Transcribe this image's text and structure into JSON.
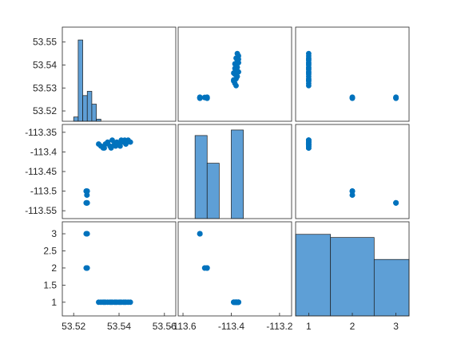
{
  "chart_data": {
    "type": "scatter-matrix",
    "title": "",
    "variables": [
      {
        "ticks": [
          53.52,
          53.53,
          53.54,
          53.55
        ],
        "tick_labels": [
          "53.52",
          "53.53",
          "53.54",
          "53.55"
        ]
      },
      {
        "ticks": [
          -113.35,
          -113.4,
          -113.45,
          -113.5,
          -113.55
        ],
        "tick_labels": [
          "-113.35",
          "-113.4",
          "-113.45",
          "-113.5",
          "-113.55"
        ]
      },
      {
        "ticks": [
          1,
          1.5,
          2,
          2.5,
          3
        ],
        "tick_labels": [
          "1",
          "1.5",
          "2",
          "2.5",
          "3"
        ]
      }
    ],
    "x_axes": [
      {
        "range": [
          53.515,
          53.565
        ],
        "ticks": [
          53.52,
          53.54,
          53.56
        ],
        "tick_labels": [
          "53.52",
          "53.54",
          "53.56"
        ]
      },
      {
        "range": [
          -113.62,
          -113.15
        ],
        "ticks": [
          -113.6,
          -113.4,
          -113.2
        ],
        "tick_labels": [
          "-113.6",
          "-113.4",
          "-113.2"
        ]
      },
      {
        "range": [
          0.7,
          3.3
        ],
        "ticks": [
          1,
          2,
          3
        ],
        "tick_labels": [
          "1",
          "2",
          "3"
        ]
      }
    ],
    "y_axes": [
      {
        "range": [
          53.5155,
          53.5565
        ]
      },
      {
        "range": [
          -113.57,
          -113.33
        ]
      },
      {
        "range": [
          0.6,
          3.35
        ]
      }
    ],
    "histograms": {
      "var1": {
        "edges": [
          53.52,
          53.522,
          53.524,
          53.526,
          53.528,
          53.53,
          53.532
        ],
        "counts": [
          1,
          19,
          6,
          7,
          4,
          0.5
        ],
        "ymax": 22
      },
      "var2": {
        "edges": [
          -113.55,
          -113.5,
          -113.45,
          -113.4,
          -113.35
        ],
        "counts": [
          15,
          10,
          0,
          16
        ],
        "ymax": 17
      },
      "var3": {
        "edges": [
          0.5,
          1.5,
          2.5,
          3.5
        ],
        "counts": [
          13,
          12.5,
          9
        ],
        "ymax": 15
      }
    },
    "points": [
      [
        53.5255,
        -113.5,
        2
      ],
      [
        53.5256,
        -113.5,
        2
      ],
      [
        53.5257,
        -113.5,
        2
      ],
      [
        53.5258,
        -113.51,
        2
      ],
      [
        53.5259,
        -113.51,
        2
      ],
      [
        53.526,
        -113.5,
        2
      ],
      [
        53.5255,
        -113.53,
        3
      ],
      [
        53.5256,
        -113.53,
        3
      ],
      [
        53.5257,
        -113.53,
        3
      ],
      [
        53.5258,
        -113.53,
        3
      ],
      [
        53.5259,
        -113.53,
        3
      ],
      [
        53.526,
        -113.53,
        3
      ],
      [
        53.531,
        -113.38,
        1
      ],
      [
        53.532,
        -113.385,
        1
      ],
      [
        53.533,
        -113.39,
        1
      ],
      [
        53.534,
        -113.38,
        1
      ],
      [
        53.535,
        -113.375,
        1
      ],
      [
        53.536,
        -113.385,
        1
      ],
      [
        53.537,
        -113.37,
        1
      ],
      [
        53.538,
        -113.38,
        1
      ],
      [
        53.539,
        -113.375,
        1
      ],
      [
        53.54,
        -113.38,
        1
      ],
      [
        53.541,
        -113.37,
        1
      ],
      [
        53.542,
        -113.375,
        1
      ],
      [
        53.543,
        -113.38,
        1
      ],
      [
        53.544,
        -113.37,
        1
      ],
      [
        53.545,
        -113.375,
        1
      ],
      [
        53.5335,
        -113.39,
        1
      ],
      [
        53.5365,
        -113.39,
        1
      ],
      [
        53.5385,
        -113.385,
        1
      ],
      [
        53.5405,
        -113.385,
        1
      ],
      [
        53.5425,
        -113.37,
        1
      ]
    ],
    "colors": {
      "marker": "#0072bd",
      "bar": "#5e9fd6",
      "bar_edge": "#1a1a1a",
      "axis": "#262626"
    }
  }
}
